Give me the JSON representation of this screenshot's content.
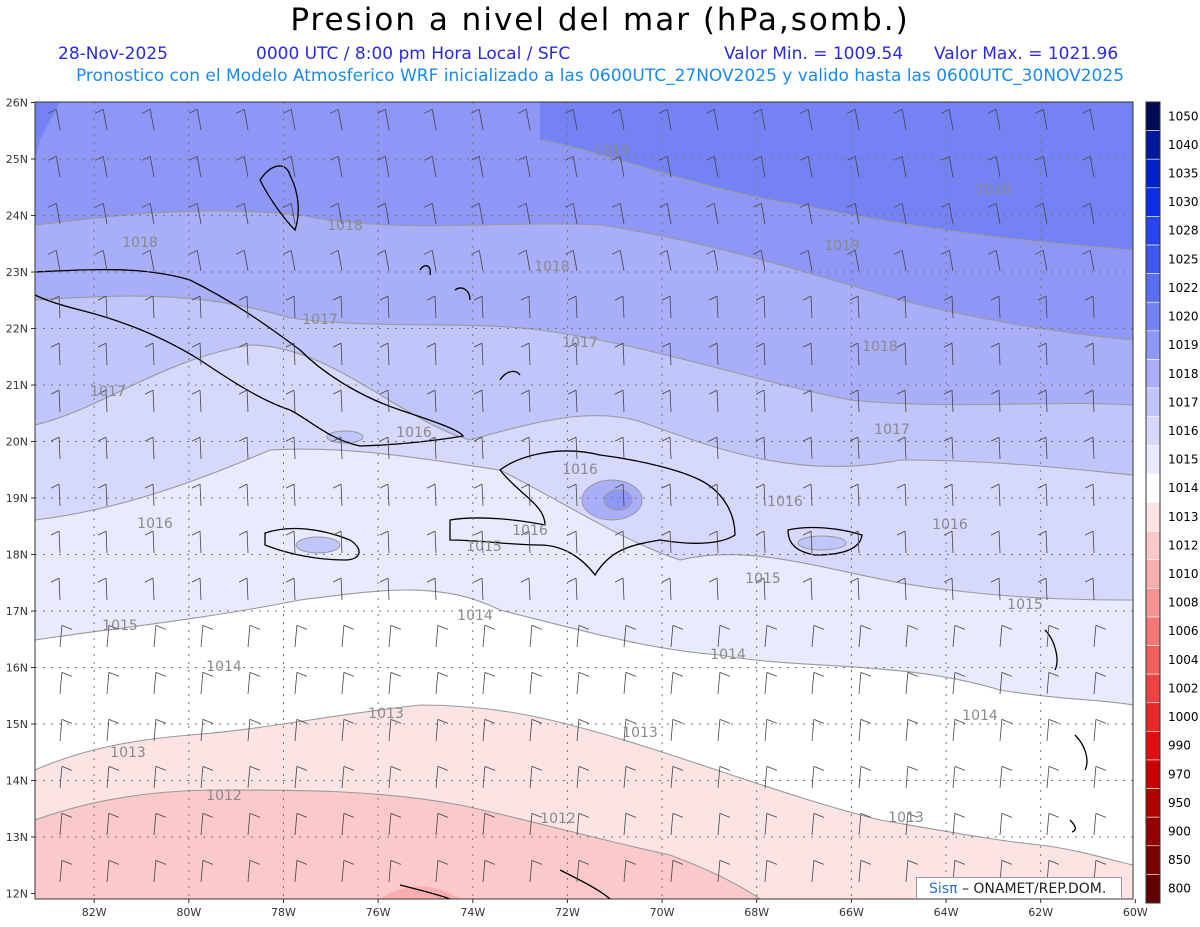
{
  "header": {
    "title": "Presion a nivel del mar (hPa,somb.)",
    "date": "28-Nov-2025",
    "time": "0000 UTC / 8:00 pm Hora Local / SFC",
    "valor_min": "Valor Min. = 1009.54",
    "valor_max": "Valor Max. = 1021.96",
    "forecast_line": "Pronostico con el Modelo Atmosferico WRF inicializado a las 0600UTC_27NOV2025 y valido hasta las  0600UTC_30NOV2025"
  },
  "axes": {
    "lat_labels": [
      "26N",
      "25N",
      "24N",
      "23N",
      "22N",
      "21N",
      "20N",
      "19N",
      "18N",
      "17N",
      "16N",
      "15N",
      "14N",
      "13N",
      "12N"
    ],
    "lon_labels": [
      "82W",
      "80W",
      "78W",
      "76W",
      "74W",
      "72W",
      "70W",
      "68W",
      "66W",
      "64W",
      "62W",
      "60W"
    ]
  },
  "colorbar": {
    "levels": [
      "1050",
      "1040",
      "1035",
      "1030",
      "1028",
      "1025",
      "1022",
      "1020",
      "1019",
      "1018",
      "1017",
      "1016",
      "1015",
      "1014",
      "1013",
      "1012",
      "1010",
      "1008",
      "1006",
      "1004",
      "1002",
      "1000",
      "990",
      "970",
      "950",
      "900",
      "850",
      "800"
    ],
    "colors": [
      "#000a55",
      "#00199c",
      "#0022c8",
      "#0d2ee6",
      "#2745ee",
      "#3f59f0",
      "#5a6ef2",
      "#7482f4",
      "#8e97f6",
      "#a8aef8",
      "#c0c5fa",
      "#d6d9fc",
      "#e8eafe",
      "#ffffff",
      "#fde4e4",
      "#fbc9c9",
      "#f8aeae",
      "#f59393",
      "#f27878",
      "#ef5d5d",
      "#ec4242",
      "#e82727",
      "#e00e0e",
      "#c80000",
      "#ae0000",
      "#940000",
      "#7a0000",
      "#600000"
    ]
  },
  "contours": [
    {
      "value": "1020",
      "lx": 993,
      "ly": 194
    },
    {
      "value": "1019",
      "lx": 612,
      "ly": 155
    },
    {
      "value": "1019",
      "lx": 842,
      "ly": 250
    },
    {
      "value": "1018",
      "lx": 140,
      "ly": 247
    },
    {
      "value": "1018",
      "lx": 345,
      "ly": 230
    },
    {
      "value": "1018",
      "lx": 552,
      "ly": 271
    },
    {
      "value": "1018",
      "lx": 880,
      "ly": 351
    },
    {
      "value": "1017",
      "lx": 320,
      "ly": 324
    },
    {
      "value": "1017",
      "lx": 108,
      "ly": 396
    },
    {
      "value": "1017",
      "lx": 580,
      "ly": 347
    },
    {
      "value": "1017",
      "lx": 892,
      "ly": 434
    },
    {
      "value": "1016",
      "lx": 414,
      "ly": 437
    },
    {
      "value": "1016",
      "lx": 580,
      "ly": 474
    },
    {
      "value": "1016",
      "lx": 155,
      "ly": 528
    },
    {
      "value": "1016",
      "lx": 785,
      "ly": 506
    },
    {
      "value": "1016",
      "lx": 950,
      "ly": 529
    },
    {
      "value": "1016",
      "lx": 530,
      "ly": 535
    },
    {
      "value": "1015",
      "lx": 484,
      "ly": 551
    },
    {
      "value": "1015",
      "lx": 120,
      "ly": 630
    },
    {
      "value": "1015",
      "lx": 763,
      "ly": 583
    },
    {
      "value": "1015",
      "lx": 1025,
      "ly": 609
    },
    {
      "value": "1014",
      "lx": 475,
      "ly": 620
    },
    {
      "value": "1014",
      "lx": 224,
      "ly": 671
    },
    {
      "value": "1014",
      "lx": 728,
      "ly": 659
    },
    {
      "value": "1014",
      "lx": 980,
      "ly": 720
    },
    {
      "value": "1013",
      "lx": 386,
      "ly": 718
    },
    {
      "value": "1013",
      "lx": 128,
      "ly": 757
    },
    {
      "value": "1013",
      "lx": 640,
      "ly": 737
    },
    {
      "value": "1013",
      "lx": 906,
      "ly": 822
    },
    {
      "value": "1012",
      "lx": 224,
      "ly": 800
    },
    {
      "value": "1012",
      "lx": 558,
      "ly": 823
    }
  ],
  "credit": {
    "brand": "Sisπ",
    "text": " – ONAMET/REP.DOM."
  }
}
